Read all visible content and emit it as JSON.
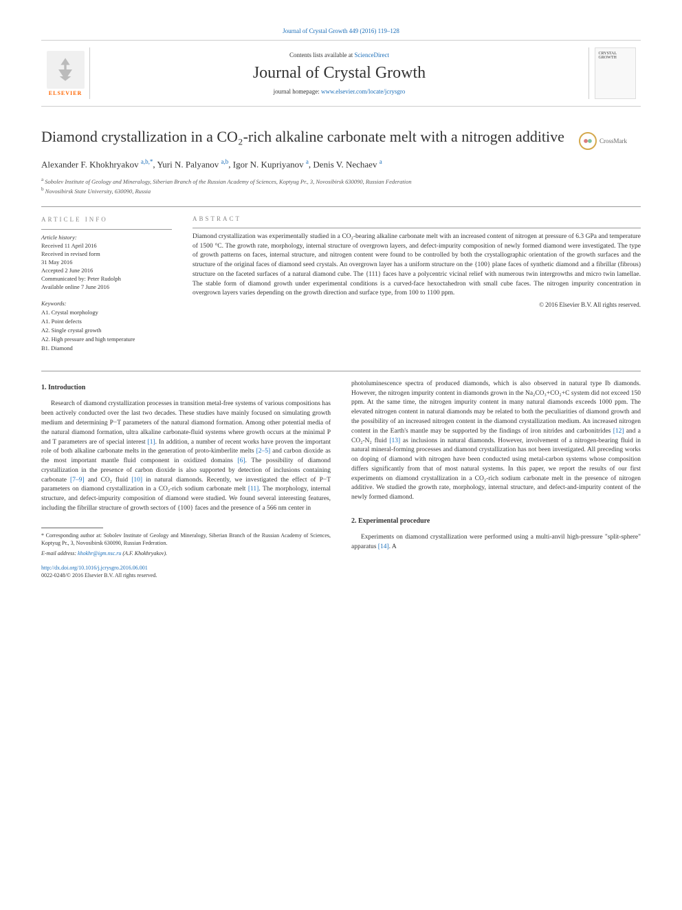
{
  "top_citation": "Journal of Crystal Growth 449 (2016) 119–128",
  "header": {
    "elsevier_label": "ELSEVIER",
    "contents_prefix": "Contents lists available at ",
    "contents_link": "ScienceDirect",
    "journal_name": "Journal of Crystal Growth",
    "homepage_prefix": "journal homepage: ",
    "homepage_url": "www.elsevier.com/locate/jcrysgro",
    "cover_text_small": "CRYSTAL GROWTH"
  },
  "title": "Diamond crystallization in a CO₂-rich alkaline carbonate melt with a nitrogen additive",
  "crossmark_label": "CrossMark",
  "authors_html": "Alexander F. Khokhryakov <sup>a,b,*</sup>, Yuri N. Palyanov <sup>a,b</sup>, Igor N. Kupriyanov <sup>a</sup>, Denis V. Nechaev <sup>a</sup>",
  "affiliations": [
    {
      "sup": "a",
      "text": "Sobolev Institute of Geology and Mineralogy, Siberian Branch of the Russian Academy of Sciences, Koptyug Pr., 3, Novosibirsk 630090, Russian Federation"
    },
    {
      "sup": "b",
      "text": "Novosibirsk State University, 630090, Russia"
    }
  ],
  "article_info": {
    "heading": "ARTICLE INFO",
    "history_label": "Article history:",
    "history": [
      "Received 11 April 2016",
      "Received in revised form",
      "31 May 2016",
      "Accepted 2 June 2016",
      "Communicated by: Peter Rudolph",
      "Available online 7 June 2016"
    ],
    "keywords_label": "Keywords:",
    "keywords": [
      "A1. Crystal morphology",
      "A1. Point defects",
      "A2. Single crystal growth",
      "A2. High pressure and high temperature",
      "B1. Diamond"
    ]
  },
  "abstract": {
    "heading": "ABSTRACT",
    "text": "Diamond crystallization was experimentally studied in a CO₂-bearing alkaline carbonate melt with an increased content of nitrogen at pressure of 6.3 GPa and temperature of 1500 °C. The growth rate, morphology, internal structure of overgrown layers, and defect-impurity composition of newly formed diamond were investigated. The type of growth patterns on faces, internal structure, and nitrogen content were found to be controlled by both the crystallographic orientation of the growth surfaces and the structure of the original faces of diamond seed crystals. An overgrown layer has a uniform structure on the {100} plane faces of synthetic diamond and a fibrillar (fibrous) structure on the faceted surfaces of a natural diamond cube. The {111} faces have a polycentric vicinal relief with numerous twin intergrowths and micro twin lamellae. The stable form of diamond growth under experimental conditions is a curved-face hexoctahedron with small cube faces. The nitrogen impurity concentration in overgrown layers varies depending on the growth direction and surface type, from 100 to 1100 ppm.",
    "copyright": "© 2016 Elsevier B.V. All rights reserved."
  },
  "sections": {
    "intro_heading": "1.  Introduction",
    "intro_col1": "Research of diamond crystallization processes in transition metal-free systems of various compositions has been actively conducted over the last two decades. These studies have mainly focused on simulating growth medium and determining P−T parameters of the natural diamond formation. Among other potential media of the natural diamond formation, ultra alkaline carbonate-fluid systems where growth occurs at the minimal P and T parameters are of special interest [1]. In addition, a number of recent works have proven the important role of both alkaline carbonate melts in the generation of proto-kimberlite melts [2–5] and carbon dioxide as the most important mantle fluid component in oxidized domains [6]. The possibility of diamond crystallization in the presence of carbon dioxide is also supported by detection of inclusions containing carbonate [7–9] and CO₂ fluid [10] in natural diamonds. Recently, we investigated the effect of P−T parameters on diamond crystallization in a CO₂-rich sodium carbonate melt [11]. The morphology, internal structure, and defect-impurity composition of diamond were studied. We found several interesting features, including the fibrillar structure of growth sectors of {100} faces and the presence of a 566 nm center in",
    "intro_col2": "photoluminescence spectra of produced diamonds, which is also observed in natural type Ib diamonds. However, the nitrogen impurity content in diamonds grown in the Na₂CO₃+CO₂+C system did not exceed 150 ppm. At the same time, the nitrogen impurity content in many natural diamonds exceeds 1000 ppm. The elevated nitrogen content in natural diamonds may be related to both the peculiarities of diamond growth and the possibility of an increased nitrogen content in the diamond crystallization medium. An increased nitrogen content in the Earth's mantle may be supported by the findings of iron nitrides and carbonitrides [12] and a CO₂-N₂ fluid [13] as inclusions in natural diamonds. However, involvement of a nitrogen-bearing fluid in natural mineral-forming processes and diamond crystallization has not been investigated. All preceding works on doping of diamond with nitrogen have been conducted using metal-carbon systems whose composition differs significantly from that of most natural systems. In this paper, we report the results of our first experiments on diamond crystallization in a CO₂-rich sodium carbonate melt in the presence of nitrogen additive. We studied the growth rate, morphology, internal structure, and defect-and-impurity content of the newly formed diamond.",
    "exp_heading": "2.  Experimental procedure",
    "exp_text": "Experiments on diamond crystallization were performed using a multi-anvil high-pressure \"split-sphere\" apparatus [14]. A"
  },
  "footer": {
    "corresponding": "* Corresponding author at: Sobolev Institute of Geology and Mineralogy, Siberian Branch of the Russian Academy of Sciences, Koptyug Pr., 3, Novosibirsk 630090, Russian Federation.",
    "email_label": "E-mail address: ",
    "email": "khokhr@igm.nsc.ru",
    "email_suffix": " (A.F. Khokhryakov).",
    "doi": "http://dx.doi.org/10.1016/j.jcrysgro.2016.06.001",
    "issn_copyright": "0022-0248/© 2016 Elsevier B.V. All rights reserved."
  },
  "refs": {
    "r1": "[1]",
    "r2_5": "[2–5]",
    "r6": "[6]",
    "r7_9": "[7–9]",
    "r10": "[10]",
    "r11": "[11]",
    "r12": "[12]",
    "r13": "[13]",
    "r14": "[14]"
  }
}
